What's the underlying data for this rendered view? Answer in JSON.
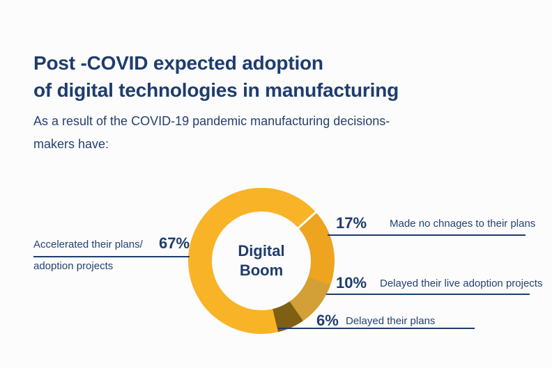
{
  "page": {
    "background": "#fcfcfc",
    "accent_navy": "#1e3c6e"
  },
  "header": {
    "title_prefix": "Post -",
    "title_bold": "COVID",
    "title_rest": " expected adoption",
    "title_line2": "of digital technologies in manufacturing",
    "subtitle_line1": "As a result of the COVID-19 pandemic manufacturing decisions-",
    "subtitle_line2": "makers have:"
  },
  "chart_data": {
    "type": "pie",
    "variant": "donut",
    "title": "Post -COVID expected adoption of digital technologies in manufacturing",
    "center_label_line1": "Digital",
    "center_label_line2": "Boom",
    "start_angle_deg": 48,
    "draw_order": [
      1,
      2,
      3,
      0
    ],
    "legend_position": "callouts",
    "text_color": "#1e3c6e",
    "segments": [
      {
        "label": "Accelerated their plans/ adoption projects",
        "value_pct": 67,
        "color": "#f9b327"
      },
      {
        "label": "Made no chnages to their plans",
        "value_pct": 17,
        "color": "#eea41f"
      },
      {
        "label": "Delayed their live adoption projects",
        "value_pct": 10,
        "color": "#d2a036"
      },
      {
        "label": "Delayed their plans",
        "value_pct": 6,
        "color": "#7e5f13"
      }
    ]
  },
  "callouts": {
    "left": {
      "pct": "67%",
      "line1": "Accelerated their plans/",
      "line2": "adoption projects"
    },
    "right": [
      {
        "pct": "17%",
        "label": "Made no chnages to their plans"
      },
      {
        "pct": "10%",
        "label": "Delayed their live adoption projects"
      },
      {
        "pct": "6%",
        "label": "Delayed their plans"
      }
    ]
  }
}
